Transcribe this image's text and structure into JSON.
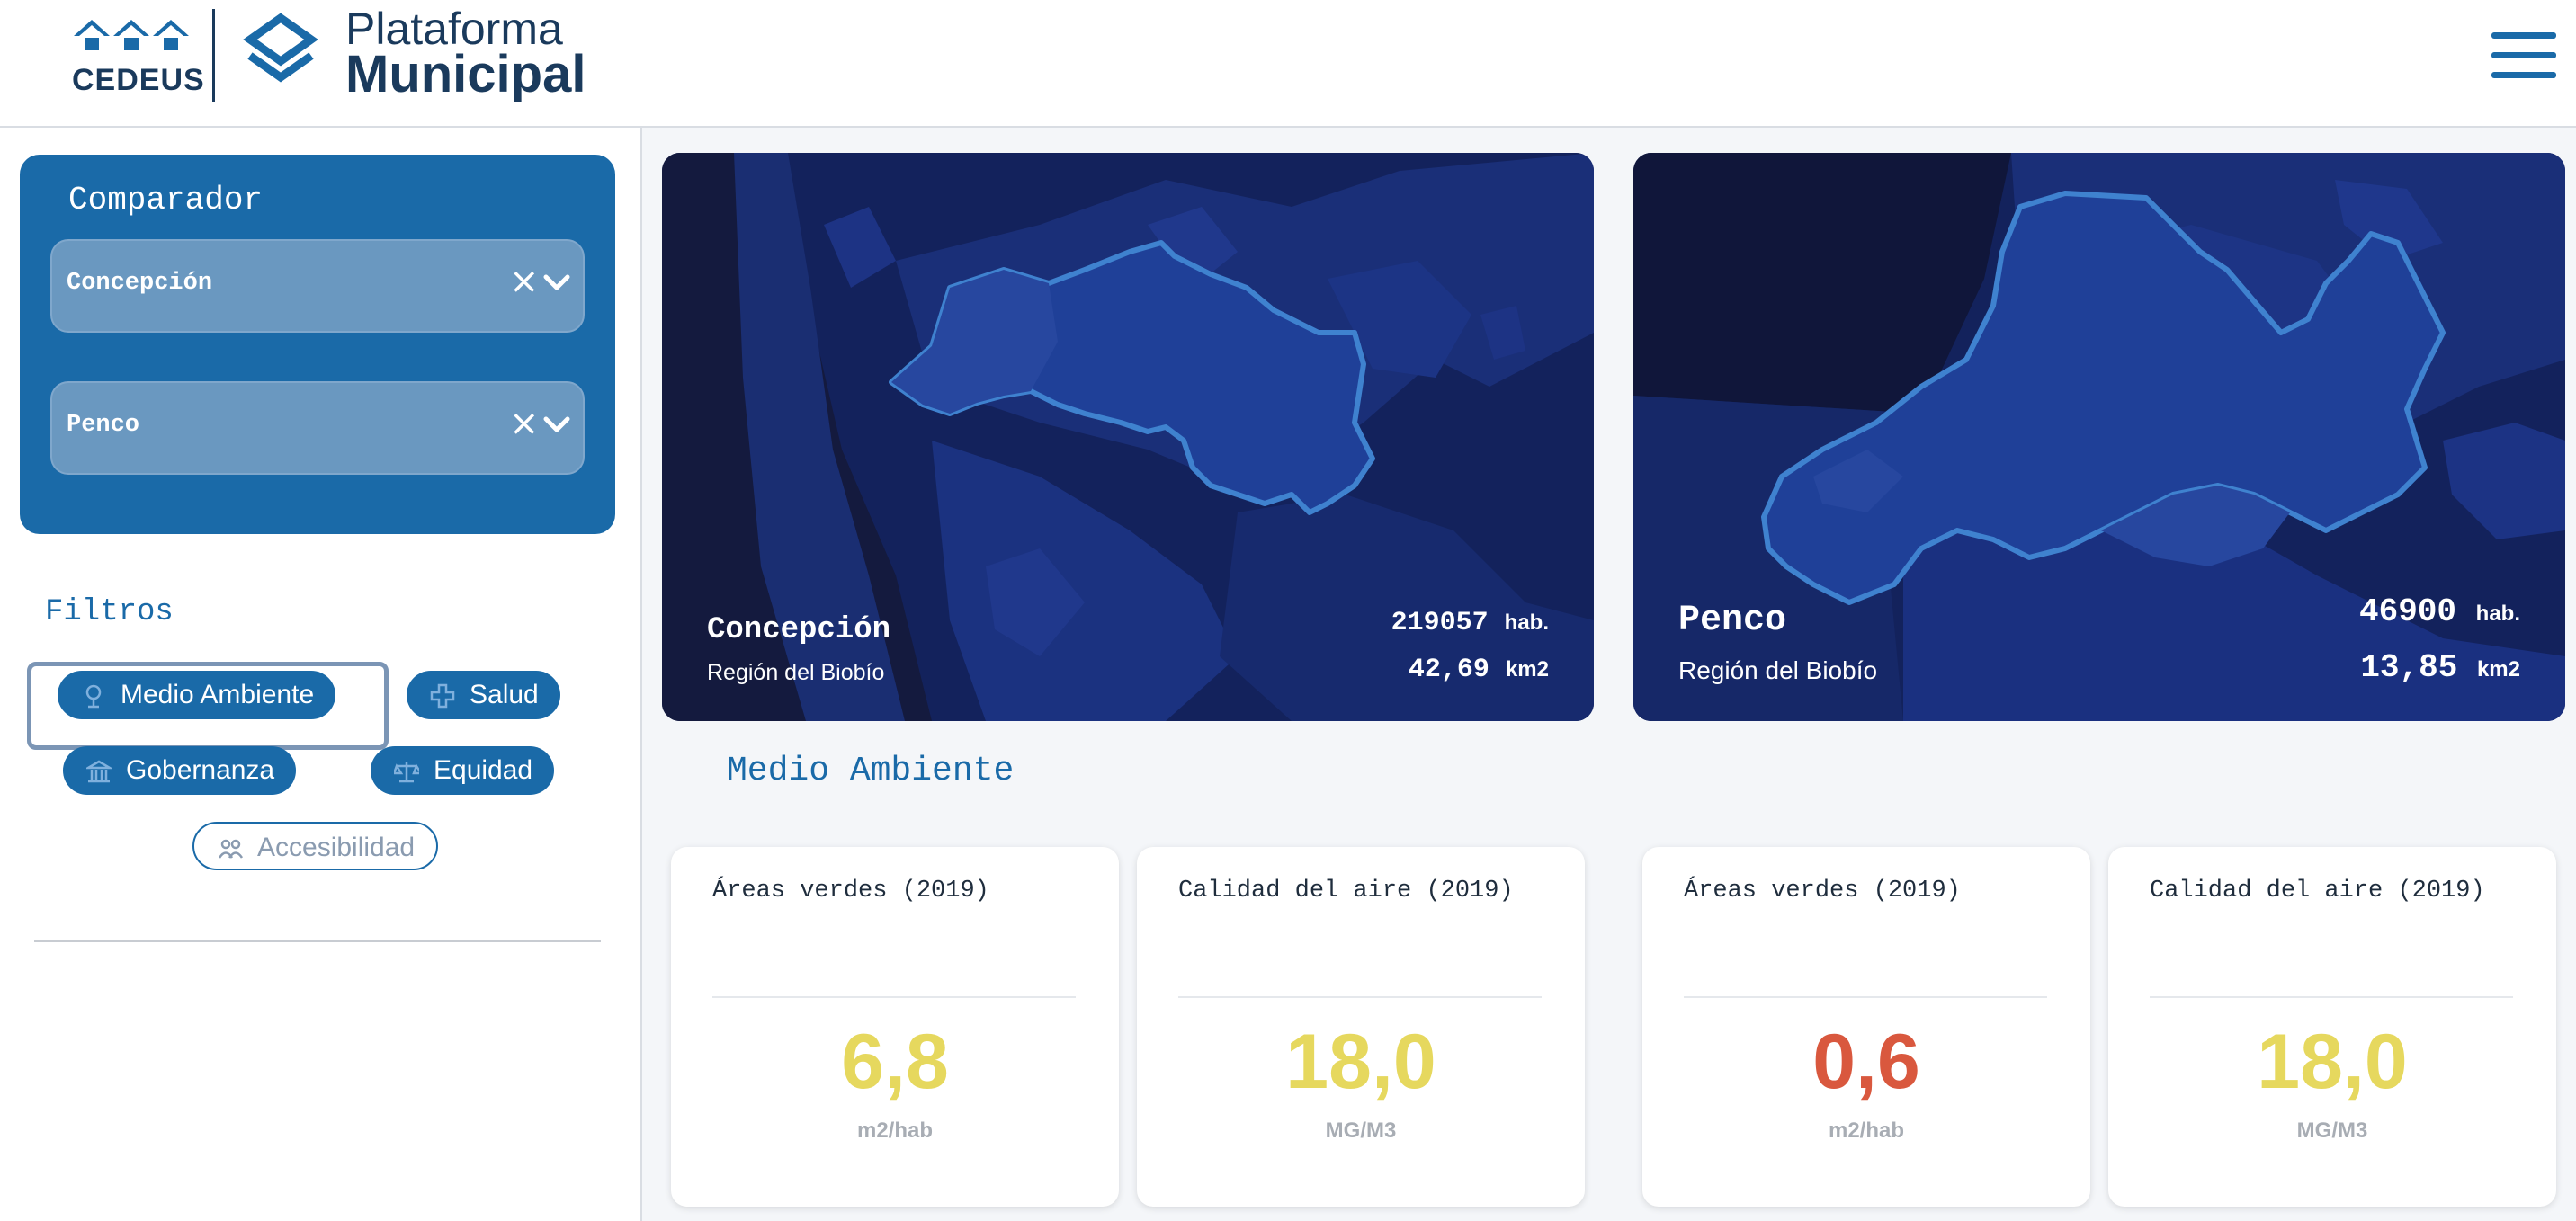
{
  "header": {
    "cedeus_label": "CEDEUS",
    "brand_line1": "Plataforma",
    "brand_line2": "Municipal"
  },
  "colors": {
    "primary": "#1a6aa8",
    "map_bg": "#0f1a4a",
    "value_yellow": "#e6d85e",
    "value_red": "#d9583e"
  },
  "comparador": {
    "title": "Comparador",
    "selects": [
      {
        "value": "Concepción",
        "clear": "×"
      },
      {
        "value": "Penco",
        "clear": "×"
      }
    ]
  },
  "filtros": {
    "title": "Filtros",
    "pills": [
      {
        "label": "Medio Ambiente",
        "icon": "tree-icon",
        "active": true
      },
      {
        "label": "Salud",
        "icon": "health-cross-icon"
      },
      {
        "label": "Gobernanza",
        "icon": "building-icon"
      },
      {
        "label": "Equidad",
        "icon": "scale-icon"
      },
      {
        "label": "Accesibilidad",
        "icon": "people-icon",
        "outlined": true
      }
    ]
  },
  "maps": [
    {
      "name": "Concepción",
      "region": "Región del Biobío",
      "population": "219057",
      "population_unit": "hab.",
      "area": "42,69",
      "area_unit": "km2"
    },
    {
      "name": "Penco",
      "region": "Región del Biobío",
      "population": "46900",
      "population_unit": "hab.",
      "area": "13,85",
      "area_unit": "km2"
    }
  ],
  "section": {
    "title": "Medio Ambiente"
  },
  "cards": [
    {
      "title": "Áreas verdes (2019)",
      "value": "6,8",
      "unit": "m2/hab",
      "status": "yellow"
    },
    {
      "title": "Calidad del aire (2019)",
      "value": "18,0",
      "unit": "MG/M3",
      "status": "yellow"
    },
    {
      "title": "Áreas verdes (2019)",
      "value": "0,6",
      "unit": "m2/hab",
      "status": "red"
    },
    {
      "title": "Calidad del aire (2019)",
      "value": "18,0",
      "unit": "MG/M3",
      "status": "yellow"
    }
  ]
}
